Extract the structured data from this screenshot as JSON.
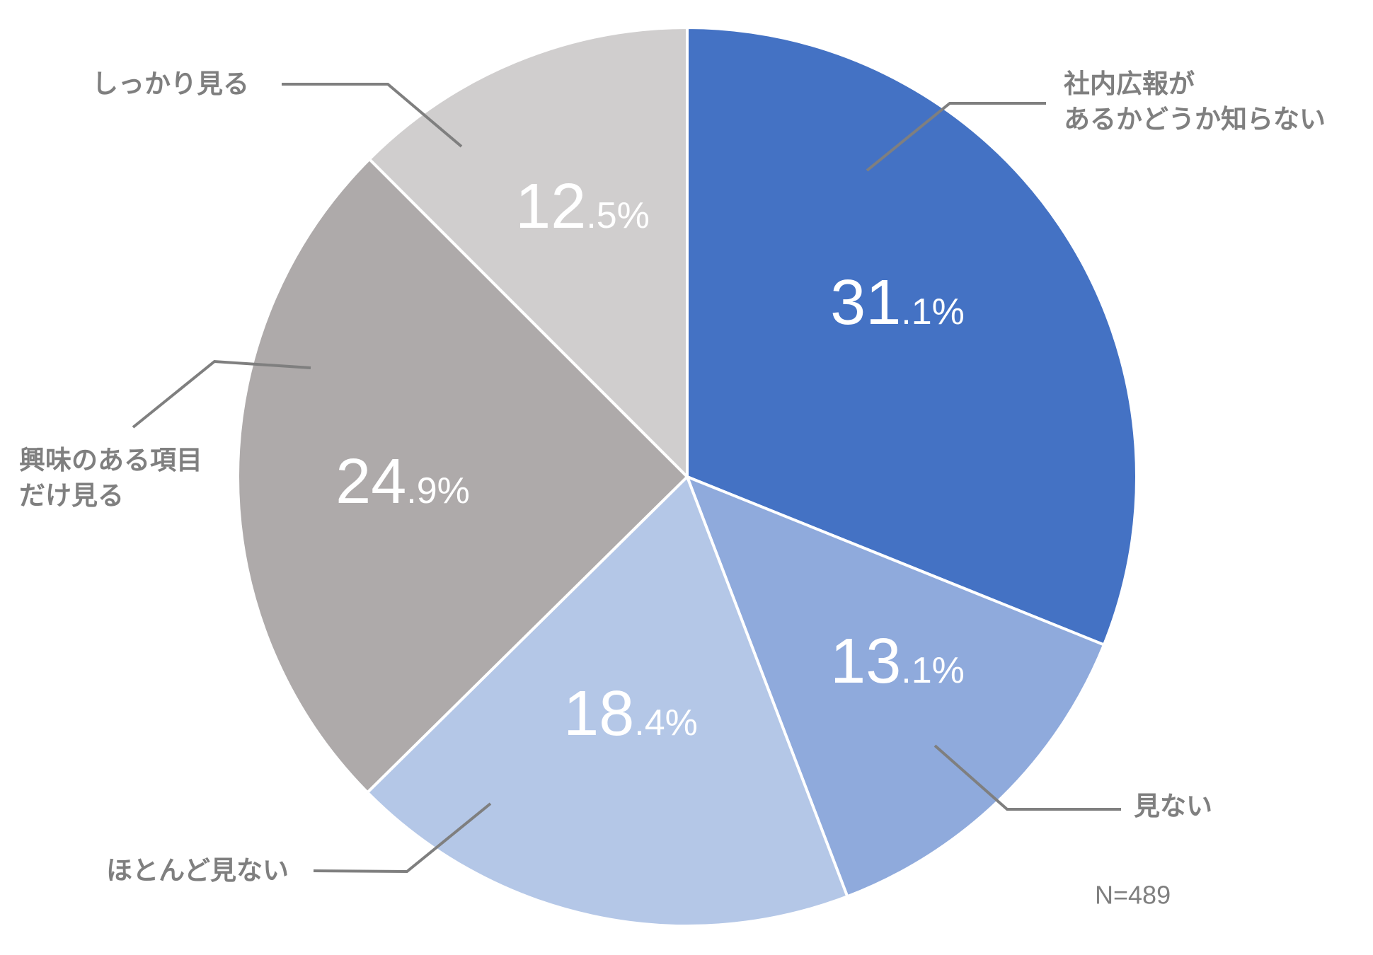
{
  "chart_data": {
    "type": "pie",
    "categories": [
      "社内広報が\nあるかどうか知らない",
      "見ない",
      "ほとんど見ない",
      "興味のある項目\nだけ見る",
      "しっかり見る"
    ],
    "values": [
      31.1,
      13.1,
      18.4,
      24.9,
      12.5
    ],
    "value_labels": [
      "31.1%",
      "13.1%",
      "18.4%",
      "24.9%",
      "12.5%"
    ],
    "colors": [
      "#4472c4",
      "#8faadc",
      "#b4c7e7",
      "#aeaaaa",
      "#d0cece"
    ],
    "annotation": "N=489"
  }
}
